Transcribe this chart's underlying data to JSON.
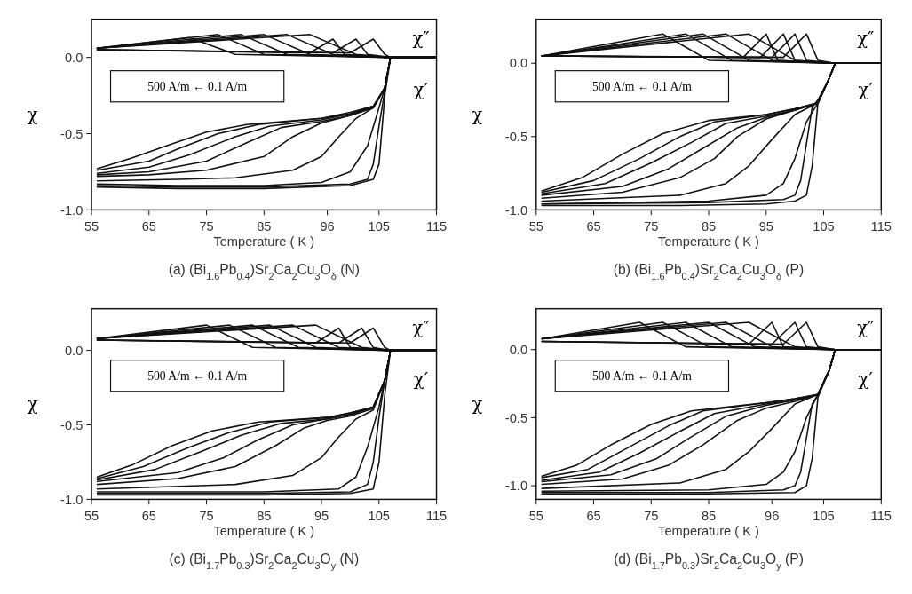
{
  "chart_data": [
    {
      "type": "line",
      "title": "(a) (Bi$_{1.6}$Pb$_{0.4}$)Sr$_{2}$Ca$_{2}$Cu$_{3}$O$_{δ}$ (N)",
      "xlabel": "Temperature ( K )",
      "ylabel": "χ",
      "xlim": [
        55,
        115
      ],
      "ylim": [
        -1.0,
        0.25
      ],
      "xticks": [
        55,
        65,
        75,
        85,
        96,
        105,
        115
      ],
      "yticks": [
        {
          "value": 0,
          "label": "0.0"
        },
        {
          "value": -0.5,
          "label": "-0.5"
        },
        {
          "value": -1,
          "label": "-1.0"
        }
      ],
      "annotations": [
        "500 A/m ← 0.1 A/m",
        "χ″",
        "χ′"
      ],
      "series": [
        {
          "color": "#111111",
          "x": [
            56,
            70,
            85,
            100,
            104,
            105,
            106,
            107,
            115
          ],
          "values": [
            -0.85,
            -0.86,
            -0.86,
            -0.84,
            -0.8,
            -0.7,
            -0.25,
            0,
            0
          ]
        },
        {
          "color": "#111111",
          "x": [
            56,
            70,
            85,
            100,
            103,
            104,
            105,
            106,
            107,
            115
          ],
          "values": [
            -0.84,
            -0.85,
            -0.85,
            -0.83,
            -0.8,
            -0.7,
            -0.45,
            -0.22,
            0,
            0
          ]
        },
        {
          "color": "#111111",
          "x": [
            56,
            70,
            85,
            95,
            100,
            103,
            105,
            106,
            107,
            115
          ],
          "values": [
            -0.83,
            -0.84,
            -0.84,
            -0.82,
            -0.75,
            -0.58,
            -0.33,
            -0.2,
            0,
            0
          ]
        },
        {
          "color": "#111111",
          "x": [
            56,
            70,
            80,
            90,
            95,
            98,
            101,
            104,
            106,
            107,
            115
          ],
          "values": [
            -0.81,
            -0.8,
            -0.79,
            -0.74,
            -0.65,
            -0.52,
            -0.4,
            -0.33,
            -0.2,
            0,
            0
          ]
        },
        {
          "color": "#111111",
          "x": [
            56,
            65,
            75,
            85,
            90,
            95,
            100,
            104,
            106,
            107,
            115
          ],
          "values": [
            -0.78,
            -0.77,
            -0.74,
            -0.65,
            -0.52,
            -0.43,
            -0.38,
            -0.33,
            -0.2,
            0,
            0
          ]
        },
        {
          "color": "#111111",
          "x": [
            56,
            65,
            75,
            82,
            88,
            95,
            100,
            104,
            106,
            107,
            115
          ],
          "values": [
            -0.77,
            -0.75,
            -0.68,
            -0.56,
            -0.46,
            -0.42,
            -0.38,
            -0.33,
            -0.2,
            0,
            0
          ]
        },
        {
          "color": "#111111",
          "x": [
            56,
            65,
            72,
            80,
            86,
            95,
            100,
            104,
            106,
            107,
            115
          ],
          "values": [
            -0.76,
            -0.72,
            -0.64,
            -0.52,
            -0.45,
            -0.41,
            -0.37,
            -0.33,
            -0.2,
            0,
            0
          ]
        },
        {
          "color": "#111111",
          "x": [
            56,
            65,
            70,
            77,
            84,
            95,
            100,
            104,
            106,
            107,
            115
          ],
          "values": [
            -0.74,
            -0.68,
            -0.6,
            -0.5,
            -0.44,
            -0.4,
            -0.37,
            -0.32,
            -0.2,
            0,
            0
          ]
        },
        {
          "color": "#111111",
          "x": [
            56,
            62,
            68,
            75,
            82,
            95,
            100,
            104,
            106,
            107,
            115
          ],
          "values": [
            -0.73,
            -0.66,
            -0.58,
            -0.49,
            -0.44,
            -0.4,
            -0.36,
            -0.32,
            -0.2,
            0,
            0
          ]
        },
        {
          "color": "#111111",
          "x": [
            56,
            72,
            80,
            107,
            115
          ],
          "values": [
            0.06,
            0.13,
            0.02,
            0,
            0
          ]
        },
        {
          "color": "#111111",
          "x": [
            56,
            77,
            85,
            107,
            115
          ],
          "values": [
            0.06,
            0.15,
            0.02,
            0,
            0
          ]
        },
        {
          "color": "#111111",
          "x": [
            56,
            81,
            89,
            107,
            115
          ],
          "values": [
            0.06,
            0.15,
            0.02,
            0,
            0
          ]
        },
        {
          "color": "#111111",
          "x": [
            56,
            85,
            93,
            107,
            115
          ],
          "values": [
            0.06,
            0.15,
            0.02,
            0,
            0
          ]
        },
        {
          "color": "#111111",
          "x": [
            56,
            89,
            97,
            107,
            115
          ],
          "values": [
            0.06,
            0.15,
            0.02,
            0,
            0
          ]
        },
        {
          "color": "#111111",
          "x": [
            56,
            93,
            101,
            107,
            115
          ],
          "values": [
            0.06,
            0.15,
            0.02,
            0,
            0
          ]
        },
        {
          "color": "#111111",
          "x": [
            56,
            93,
            97,
            99,
            107,
            115
          ],
          "values": [
            0.05,
            0.03,
            0.12,
            0.02,
            0,
            0
          ]
        },
        {
          "color": "#111111",
          "x": [
            56,
            97,
            101,
            103,
            107,
            115
          ],
          "values": [
            0.05,
            0.03,
            0.12,
            0.02,
            0,
            0
          ]
        },
        {
          "color": "#111111",
          "x": [
            56,
            100,
            104,
            106,
            107,
            115
          ],
          "values": [
            0.05,
            0.03,
            0.12,
            0.02,
            0,
            0
          ]
        }
      ]
    },
    {
      "type": "line",
      "title": "(b) (Bi$_{1.6}$Pb$_{0.4}$)Sr$_{2}$Ca$_{2}$Cu$_{3}$O$_{δ}$ (P)",
      "xlabel": "Temperature ( K )",
      "ylabel": "χ",
      "xlim": [
        55,
        115
      ],
      "ylim": [
        -1.0,
        0.3
      ],
      "xticks": [
        55,
        65,
        75,
        85,
        95,
        105,
        115
      ],
      "yticks": [
        {
          "value": 0,
          "label": "0.0"
        },
        {
          "value": -0.5,
          "label": "-0.5"
        },
        {
          "value": -1,
          "label": "-1.0"
        }
      ],
      "annotations": [
        "500 A/m ← 0.1 A/m",
        "χ″",
        "χ′"
      ],
      "series": [
        {
          "color": "#111111",
          "x": [
            56,
            80,
            95,
            100,
            102,
            103,
            104,
            106,
            107,
            115
          ],
          "values": [
            -0.97,
            -0.97,
            -0.96,
            -0.94,
            -0.9,
            -0.7,
            -0.27,
            -0.1,
            0,
            0
          ]
        },
        {
          "color": "#111111",
          "x": [
            56,
            85,
            98,
            100,
            101,
            102,
            103,
            104,
            106,
            107,
            115
          ],
          "values": [
            -0.96,
            -0.95,
            -0.93,
            -0.9,
            -0.8,
            -0.55,
            -0.3,
            -0.25,
            -0.1,
            0,
            0
          ]
        },
        {
          "color": "#111111",
          "x": [
            56,
            85,
            95,
            98,
            100,
            102,
            104,
            106,
            107,
            115
          ],
          "values": [
            -0.96,
            -0.94,
            -0.9,
            -0.82,
            -0.65,
            -0.4,
            -0.27,
            -0.1,
            0,
            0
          ]
        },
        {
          "color": "#111111",
          "x": [
            56,
            80,
            88,
            92,
            96,
            100,
            104,
            106,
            107,
            115
          ],
          "values": [
            -0.94,
            -0.9,
            -0.82,
            -0.7,
            -0.52,
            -0.35,
            -0.27,
            -0.1,
            0,
            0
          ]
        },
        {
          "color": "#111111",
          "x": [
            56,
            70,
            80,
            86,
            90,
            95,
            100,
            104,
            106,
            107,
            115
          ],
          "values": [
            -0.92,
            -0.88,
            -0.78,
            -0.65,
            -0.5,
            -0.38,
            -0.32,
            -0.27,
            -0.1,
            0,
            0
          ]
        },
        {
          "color": "#111111",
          "x": [
            56,
            70,
            78,
            84,
            90,
            95,
            100,
            104,
            106,
            107,
            115
          ],
          "values": [
            -0.9,
            -0.84,
            -0.72,
            -0.58,
            -0.44,
            -0.37,
            -0.32,
            -0.27,
            -0.1,
            0,
            0
          ]
        },
        {
          "color": "#111111",
          "x": [
            56,
            67,
            75,
            82,
            88,
            95,
            100,
            104,
            106,
            107,
            115
          ],
          "values": [
            -0.89,
            -0.82,
            -0.68,
            -0.54,
            -0.41,
            -0.36,
            -0.32,
            -0.27,
            -0.1,
            0,
            0
          ]
        },
        {
          "color": "#111111",
          "x": [
            56,
            65,
            73,
            80,
            86,
            95,
            100,
            104,
            106,
            107,
            115
          ],
          "values": [
            -0.88,
            -0.8,
            -0.65,
            -0.5,
            -0.4,
            -0.35,
            -0.31,
            -0.27,
            -0.1,
            0,
            0
          ]
        },
        {
          "color": "#111111",
          "x": [
            56,
            63,
            70,
            77,
            85,
            95,
            100,
            104,
            106,
            107,
            115
          ],
          "values": [
            -0.87,
            -0.78,
            -0.62,
            -0.48,
            -0.39,
            -0.35,
            -0.31,
            -0.27,
            -0.1,
            0,
            0
          ]
        },
        {
          "color": "#111111",
          "x": [
            56,
            77,
            85,
            107,
            115
          ],
          "values": [
            0.05,
            0.2,
            0.02,
            0,
            0
          ]
        },
        {
          "color": "#111111",
          "x": [
            56,
            81,
            89,
            107,
            115
          ],
          "values": [
            0.05,
            0.2,
            0.02,
            0,
            0
          ]
        },
        {
          "color": "#111111",
          "x": [
            56,
            84,
            92,
            107,
            115
          ],
          "values": [
            0.05,
            0.2,
            0.02,
            0,
            0
          ]
        },
        {
          "color": "#111111",
          "x": [
            56,
            88,
            96,
            107,
            115
          ],
          "values": [
            0.05,
            0.2,
            0.02,
            0,
            0
          ]
        },
        {
          "color": "#111111",
          "x": [
            56,
            92,
            100,
            107,
            115
          ],
          "values": [
            0.05,
            0.2,
            0.02,
            0,
            0
          ]
        },
        {
          "color": "#111111",
          "x": [
            56,
            91,
            95,
            97,
            107,
            115
          ],
          "values": [
            0.05,
            0.04,
            0.2,
            0.02,
            0,
            0
          ]
        },
        {
          "color": "#111111",
          "x": [
            56,
            94,
            98,
            100,
            107,
            115
          ],
          "values": [
            0.05,
            0.04,
            0.2,
            0.02,
            0,
            0
          ]
        },
        {
          "color": "#111111",
          "x": [
            56,
            96,
            100,
            102,
            107,
            115
          ],
          "values": [
            0.05,
            0.04,
            0.2,
            0.02,
            0,
            0
          ]
        },
        {
          "color": "#111111",
          "x": [
            56,
            98,
            102,
            104,
            107,
            115
          ],
          "values": [
            0.05,
            0.04,
            0.2,
            0.02,
            0,
            0
          ]
        }
      ]
    },
    {
      "type": "line",
      "title": "(c) (Bi$_{1.7}$Pb$_{0.3}$)Sr$_{2}$Ca$_{2}$Cu$_{3}$O$_{y}$ (N)",
      "xlabel": "Temperature ( K )",
      "ylabel": "χ",
      "xlim": [
        55,
        115
      ],
      "ylim": [
        -1.0,
        0.28
      ],
      "xticks": [
        55,
        65,
        75,
        85,
        95,
        105,
        115
      ],
      "yticks": [
        {
          "value": 0,
          "label": "0.0"
        },
        {
          "value": -0.5,
          "label": "-0.5"
        },
        {
          "value": -1,
          "label": "-1.0"
        }
      ],
      "annotations": [
        "500 A/m ← 0.1 A/m",
        "χ″",
        "χ′"
      ],
      "series": [
        {
          "color": "#111111",
          "x": [
            56,
            85,
            100,
            104,
            105,
            106,
            107,
            115
          ],
          "values": [
            -0.97,
            -0.97,
            -0.96,
            -0.93,
            -0.75,
            -0.3,
            0,
            0
          ]
        },
        {
          "color": "#111111",
          "x": [
            56,
            85,
            100,
            103,
            104,
            105,
            106,
            107,
            115
          ],
          "values": [
            -0.96,
            -0.96,
            -0.95,
            -0.9,
            -0.75,
            -0.45,
            -0.2,
            0,
            0
          ]
        },
        {
          "color": "#111111",
          "x": [
            56,
            85,
            98,
            101,
            103,
            105,
            106,
            107,
            115
          ],
          "values": [
            -0.95,
            -0.95,
            -0.93,
            -0.85,
            -0.65,
            -0.38,
            -0.2,
            0,
            0
          ]
        },
        {
          "color": "#111111",
          "x": [
            56,
            80,
            90,
            95,
            98,
            101,
            104,
            106,
            107,
            115
          ],
          "values": [
            -0.93,
            -0.9,
            -0.84,
            -0.72,
            -0.58,
            -0.46,
            -0.4,
            -0.2,
            0,
            0
          ]
        },
        {
          "color": "#111111",
          "x": [
            56,
            70,
            80,
            87,
            92,
            96,
            100,
            104,
            106,
            107,
            115
          ],
          "values": [
            -0.9,
            -0.86,
            -0.78,
            -0.64,
            -0.52,
            -0.47,
            -0.44,
            -0.39,
            -0.2,
            0,
            0
          ]
        },
        {
          "color": "#111111",
          "x": [
            56,
            70,
            78,
            84,
            90,
            96,
            100,
            104,
            106,
            107,
            115
          ],
          "values": [
            -0.88,
            -0.82,
            -0.72,
            -0.6,
            -0.5,
            -0.46,
            -0.43,
            -0.38,
            -0.2,
            0,
            0
          ]
        },
        {
          "color": "#111111",
          "x": [
            56,
            66,
            74,
            81,
            88,
            96,
            100,
            104,
            106,
            107,
            115
          ],
          "values": [
            -0.87,
            -0.8,
            -0.68,
            -0.57,
            -0.49,
            -0.46,
            -0.43,
            -0.38,
            -0.2,
            0,
            0
          ]
        },
        {
          "color": "#111111",
          "x": [
            56,
            64,
            72,
            79,
            86,
            96,
            100,
            104,
            106,
            107,
            115
          ],
          "values": [
            -0.86,
            -0.78,
            -0.65,
            -0.55,
            -0.48,
            -0.45,
            -0.42,
            -0.38,
            -0.2,
            0,
            0
          ]
        },
        {
          "color": "#111111",
          "x": [
            56,
            62,
            69,
            76,
            84,
            96,
            100,
            104,
            106,
            107,
            115
          ],
          "values": [
            -0.85,
            -0.77,
            -0.64,
            -0.54,
            -0.48,
            -0.45,
            -0.42,
            -0.38,
            -0.2,
            0,
            0
          ]
        },
        {
          "color": "#111111",
          "x": [
            56,
            75,
            83,
            107,
            115
          ],
          "values": [
            0.08,
            0.17,
            0.02,
            0,
            0
          ]
        },
        {
          "color": "#111111",
          "x": [
            56,
            79,
            87,
            107,
            115
          ],
          "values": [
            0.08,
            0.17,
            0.02,
            0,
            0
          ]
        },
        {
          "color": "#111111",
          "x": [
            56,
            83,
            91,
            107,
            115
          ],
          "values": [
            0.08,
            0.17,
            0.02,
            0,
            0
          ]
        },
        {
          "color": "#111111",
          "x": [
            56,
            86,
            94,
            107,
            115
          ],
          "values": [
            0.08,
            0.17,
            0.02,
            0,
            0
          ]
        },
        {
          "color": "#111111",
          "x": [
            56,
            90,
            98,
            107,
            115
          ],
          "values": [
            0.08,
            0.17,
            0.02,
            0,
            0
          ]
        },
        {
          "color": "#111111",
          "x": [
            56,
            94,
            102,
            107,
            115
          ],
          "values": [
            0.08,
            0.17,
            0.02,
            0,
            0
          ]
        },
        {
          "color": "#111111",
          "x": [
            56,
            94,
            98,
            100,
            107,
            115
          ],
          "values": [
            0.07,
            0.05,
            0.15,
            0.02,
            0,
            0
          ]
        },
        {
          "color": "#111111",
          "x": [
            56,
            98,
            102,
            104,
            107,
            115
          ],
          "values": [
            0.07,
            0.05,
            0.15,
            0.02,
            0,
            0
          ]
        },
        {
          "color": "#111111",
          "x": [
            56,
            100,
            104,
            106,
            107,
            115
          ],
          "values": [
            0.07,
            0.05,
            0.15,
            0.02,
            0,
            0
          ]
        }
      ]
    },
    {
      "type": "line",
      "title": "(d) (Bi$_{1.7}$Pb$_{0.3}$)Sr$_{2}$Ca$_{2}$Cu$_{3}$O$_{y}$ (P)",
      "xlabel": "Temperature ( K )",
      "ylabel": "χ",
      "xlim": [
        55,
        115
      ],
      "ylim": [
        -1.1,
        0.3
      ],
      "xticks": [
        55,
        65,
        75,
        85,
        96,
        105,
        115
      ],
      "yticks": [
        {
          "value": 0,
          "label": "0.0"
        },
        {
          "value": -0.5,
          "label": "-0.5"
        },
        {
          "value": -1,
          "label": "-1.0"
        }
      ],
      "annotations": [
        "500 A/m ← 0.1 A/m",
        "χ″",
        "χ′"
      ],
      "series": [
        {
          "color": "#111111",
          "x": [
            56,
            85,
            100,
            102,
            103,
            104,
            106,
            107,
            115
          ],
          "values": [
            -1.06,
            -1.06,
            -1.05,
            -1.0,
            -0.8,
            -0.35,
            -0.15,
            0,
            0
          ]
        },
        {
          "color": "#111111",
          "x": [
            56,
            85,
            98,
            100,
            101,
            102,
            103,
            104,
            106,
            107,
            115
          ],
          "values": [
            -1.05,
            -1.05,
            -1.03,
            -1.0,
            -0.9,
            -0.65,
            -0.4,
            -0.33,
            -0.15,
            0,
            0
          ]
        },
        {
          "color": "#111111",
          "x": [
            56,
            85,
            95,
            98,
            100,
            102,
            104,
            106,
            107,
            115
          ],
          "values": [
            -1.04,
            -1.03,
            -0.99,
            -0.9,
            -0.75,
            -0.5,
            -0.33,
            -0.15,
            0,
            0
          ]
        },
        {
          "color": "#111111",
          "x": [
            56,
            80,
            88,
            92,
            96,
            100,
            104,
            106,
            107,
            115
          ],
          "values": [
            -1.02,
            -0.98,
            -0.88,
            -0.75,
            -0.58,
            -0.4,
            -0.33,
            -0.15,
            0,
            0
          ]
        },
        {
          "color": "#111111",
          "x": [
            56,
            70,
            78,
            84,
            90,
            95,
            100,
            104,
            106,
            107,
            115
          ],
          "values": [
            -0.99,
            -0.95,
            -0.85,
            -0.7,
            -0.52,
            -0.43,
            -0.38,
            -0.33,
            -0.15,
            0,
            0
          ]
        },
        {
          "color": "#111111",
          "x": [
            56,
            68,
            76,
            82,
            88,
            95,
            100,
            104,
            106,
            107,
            115
          ],
          "values": [
            -0.97,
            -0.92,
            -0.8,
            -0.64,
            -0.49,
            -0.41,
            -0.37,
            -0.33,
            -0.15,
            0,
            0
          ]
        },
        {
          "color": "#111111",
          "x": [
            56,
            66,
            73,
            80,
            86,
            95,
            100,
            104,
            106,
            107,
            115
          ],
          "values": [
            -0.96,
            -0.9,
            -0.76,
            -0.6,
            -0.47,
            -0.4,
            -0.37,
            -0.33,
            -0.15,
            0,
            0
          ]
        },
        {
          "color": "#111111",
          "x": [
            56,
            64,
            71,
            78,
            84,
            95,
            100,
            104,
            106,
            107,
            115
          ],
          "values": [
            -0.94,
            -0.88,
            -0.72,
            -0.56,
            -0.45,
            -0.39,
            -0.36,
            -0.33,
            -0.15,
            0,
            0
          ]
        },
        {
          "color": "#111111",
          "x": [
            56,
            62,
            68,
            75,
            82,
            95,
            100,
            104,
            106,
            107,
            115
          ],
          "values": [
            -0.93,
            -0.85,
            -0.7,
            -0.55,
            -0.45,
            -0.39,
            -0.36,
            -0.33,
            -0.15,
            0,
            0
          ]
        },
        {
          "color": "#111111",
          "x": [
            56,
            73,
            81,
            107,
            115
          ],
          "values": [
            0.08,
            0.2,
            0.02,
            0,
            0
          ]
        },
        {
          "color": "#111111",
          "x": [
            56,
            77,
            85,
            107,
            115
          ],
          "values": [
            0.08,
            0.2,
            0.02,
            0,
            0
          ]
        },
        {
          "color": "#111111",
          "x": [
            56,
            81,
            89,
            107,
            115
          ],
          "values": [
            0.08,
            0.2,
            0.02,
            0,
            0
          ]
        },
        {
          "color": "#111111",
          "x": [
            56,
            85,
            93,
            107,
            115
          ],
          "values": [
            0.08,
            0.2,
            0.02,
            0,
            0
          ]
        },
        {
          "color": "#111111",
          "x": [
            56,
            88,
            96,
            107,
            115
          ],
          "values": [
            0.08,
            0.2,
            0.02,
            0,
            0
          ]
        },
        {
          "color": "#111111",
          "x": [
            56,
            92,
            100,
            107,
            115
          ],
          "values": [
            0.08,
            0.2,
            0.02,
            0,
            0
          ]
        },
        {
          "color": "#111111",
          "x": [
            56,
            92,
            96,
            98,
            107,
            115
          ],
          "values": [
            0.06,
            0.04,
            0.2,
            0.02,
            0,
            0
          ]
        },
        {
          "color": "#111111",
          "x": [
            56,
            96,
            100,
            102,
            107,
            115
          ],
          "values": [
            0.06,
            0.04,
            0.2,
            0.02,
            0,
            0
          ]
        },
        {
          "color": "#111111",
          "x": [
            56,
            98,
            102,
            104,
            107,
            115
          ],
          "values": [
            0.06,
            0.04,
            0.2,
            0.02,
            0,
            0
          ]
        }
      ]
    }
  ]
}
